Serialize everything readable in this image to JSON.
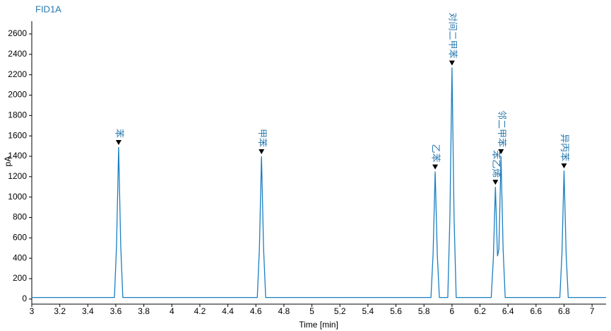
{
  "chart_data": {
    "type": "line",
    "title": "FID1A",
    "x_label": "Time [min]",
    "y_label": "pA",
    "color": "#1a7fc1",
    "x": [
      3,
      3.59,
      3.605,
      3.62,
      3.635,
      3.65,
      4.61,
      4.625,
      4.64,
      4.655,
      4.67,
      5.85,
      5.865,
      5.88,
      5.895,
      5.91,
      5.97,
      5.985,
      6.0,
      6.015,
      6.03,
      6.28,
      6.295,
      6.31,
      6.325,
      6.335,
      6.35,
      6.365,
      6.38,
      6.77,
      6.785,
      6.8,
      6.815,
      6.83,
      7.1
    ],
    "values": [
      15,
      15,
      520,
      1490,
      520,
      15,
      15,
      490,
      1400,
      490,
      15,
      15,
      440,
      1250,
      440,
      15,
      15,
      790,
      2270,
      790,
      15,
      15,
      390,
      1100,
      420,
      490,
      1400,
      490,
      15,
      15,
      440,
      1260,
      440,
      15,
      15
    ],
    "annotations": [
      {
        "x": 3.62,
        "y": 1490,
        "label": "苯"
      },
      {
        "x": 4.64,
        "y": 1400,
        "label": "甲苯"
      },
      {
        "x": 5.88,
        "y": 1250,
        "label": "乙苯"
      },
      {
        "x": 6.0,
        "y": 2270,
        "label": "对间二甲苯"
      },
      {
        "x": 6.31,
        "y": 1100,
        "label": "苯乙烯"
      },
      {
        "x": 6.35,
        "y": 1400,
        "label": "邻二甲苯"
      },
      {
        "x": 6.8,
        "y": 1260,
        "label": "异丙苯"
      }
    ],
    "xlim": [
      3,
      7.1
    ],
    "ylim": [
      -50,
      2725
    ],
    "xticks": [
      3,
      3.2,
      3.4,
      3.6,
      3.8,
      4,
      4.2,
      4.4,
      4.6,
      4.8,
      5,
      5.2,
      5.4,
      5.6,
      5.8,
      6,
      6.2,
      6.4,
      6.6,
      6.8,
      7
    ],
    "yticks": [
      0,
      200,
      400,
      600,
      800,
      1000,
      1200,
      1400,
      1600,
      1800,
      2000,
      2200,
      2400,
      2600
    ]
  }
}
